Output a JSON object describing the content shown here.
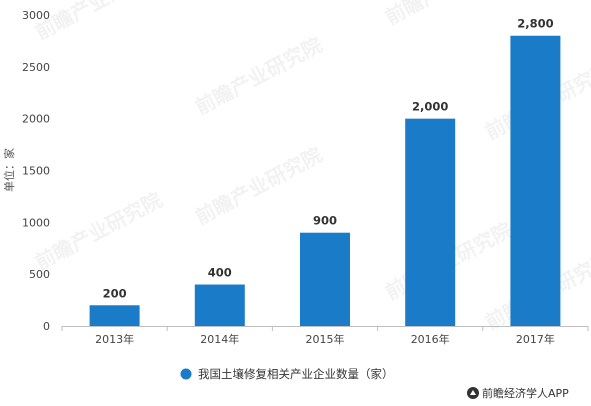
{
  "chart_data": {
    "type": "bar",
    "categories": [
      "2013年",
      "2014年",
      "2015年",
      "2016年",
      "2017年"
    ],
    "series": [
      {
        "name": "我国土壤修复相关产业企业数量（家）",
        "values": [
          200,
          400,
          900,
          2000,
          2800
        ],
        "data_labels": [
          "200",
          "400",
          "900",
          "2,000",
          "2,800"
        ],
        "color": "#1a7cc8"
      }
    ],
    "ylabel": "单位：家",
    "ylim": [
      0,
      3000
    ],
    "yticks": [
      0,
      500,
      1000,
      1500,
      2000,
      2500,
      3000
    ],
    "grid": false,
    "legend_position": "bottom"
  },
  "watermark": "前瞻产业研究院",
  "footer": {
    "brand": "前瞻经济学人APP"
  }
}
